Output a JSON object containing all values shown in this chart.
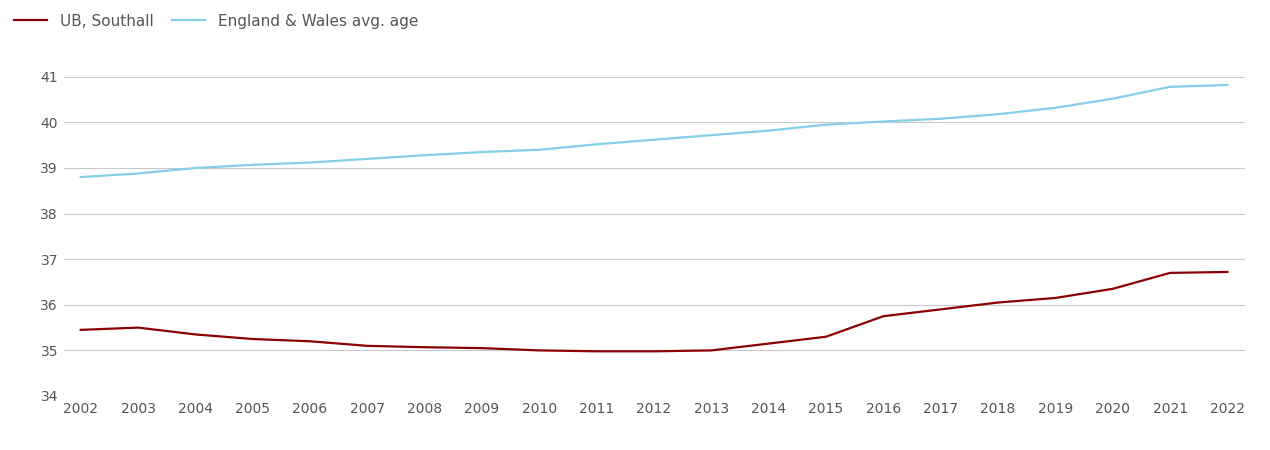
{
  "years": [
    2002,
    2003,
    2004,
    2005,
    2006,
    2007,
    2008,
    2009,
    2010,
    2011,
    2012,
    2013,
    2014,
    2015,
    2016,
    2017,
    2018,
    2019,
    2020,
    2021,
    2022
  ],
  "southall": [
    35.45,
    35.5,
    35.35,
    35.25,
    35.2,
    35.1,
    35.07,
    35.05,
    35.0,
    34.98,
    34.98,
    35.0,
    35.15,
    35.3,
    35.75,
    35.9,
    36.05,
    36.15,
    36.35,
    36.7,
    36.72
  ],
  "england_wales": [
    38.8,
    38.88,
    39.0,
    39.07,
    39.12,
    39.2,
    39.28,
    39.35,
    39.4,
    39.52,
    39.62,
    39.72,
    39.82,
    39.95,
    40.02,
    40.08,
    40.18,
    40.32,
    40.52,
    40.78,
    40.82
  ],
  "southall_color": "#8b0000",
  "england_wales_color": "#87ceeb",
  "southall_label": "UB, Southall",
  "england_wales_label": "England & Wales avg. age",
  "ylim": [
    34,
    41.5
  ],
  "yticks": [
    34,
    35,
    36,
    37,
    38,
    39,
    40,
    41
  ],
  "background_color": "#ffffff",
  "grid_color": "#c8c8c8",
  "line_width": 1.6,
  "legend_fontsize": 11,
  "tick_fontsize": 10,
  "tick_color": "#555555"
}
